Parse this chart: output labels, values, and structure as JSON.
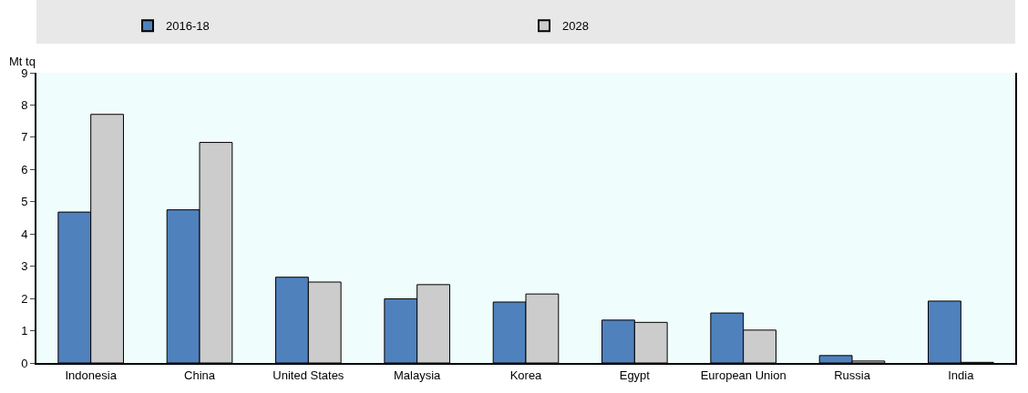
{
  "chart_data": {
    "type": "bar",
    "ylabel": "Mt tq",
    "categories": [
      "Indonesia",
      "China",
      "United States",
      "Malaysia",
      "Korea",
      "Egypt",
      "European Union",
      "Russia",
      "India"
    ],
    "series": [
      {
        "name": "2016-18",
        "color": "#4f81bd",
        "values": [
          4.68,
          4.75,
          2.66,
          1.99,
          1.89,
          1.33,
          1.55,
          0.23,
          1.92
        ]
      },
      {
        "name": "2028",
        "color": "#cccccc",
        "values": [
          7.71,
          6.84,
          2.51,
          2.43,
          2.14,
          1.26,
          1.02,
          0.06,
          0.02
        ]
      }
    ],
    "ylim": [
      0,
      9
    ],
    "yticks": [
      0,
      1,
      2,
      3,
      4,
      5,
      6,
      7,
      8,
      9
    ],
    "grid": false,
    "legend": "top"
  }
}
